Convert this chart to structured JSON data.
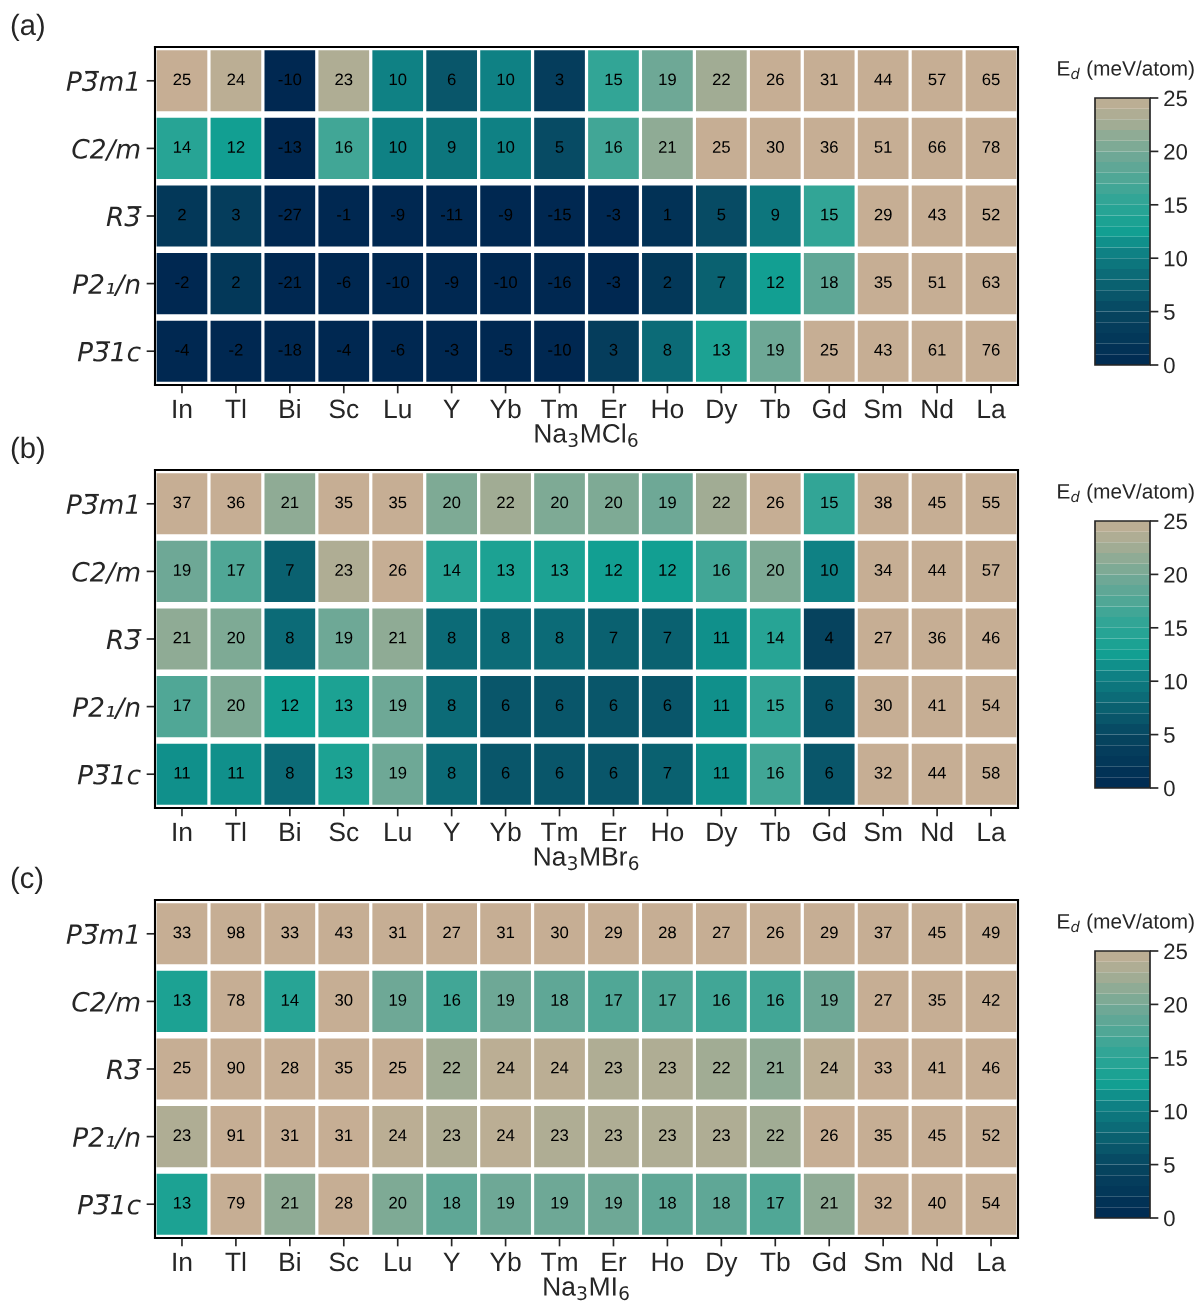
{
  "chart_data": [
    {
      "type": "heatmap",
      "title": "(a)",
      "xlabel": "Na$_{3}$MCl$_{6}$",
      "clabel": "E$_{d}$ (meV/atom)",
      "categories": [
        "In",
        "Tl",
        "Bi",
        "Sc",
        "Lu",
        "Y",
        "Yb",
        "Tm",
        "Er",
        "Ho",
        "Dy",
        "Tb",
        "Gd",
        "Sm",
        "Nd",
        "La"
      ],
      "y_categories": [
        "P3̅m1",
        "C2/m",
        "R3̅",
        "P2₁/n",
        "P3̅1c"
      ],
      "cells": [
        [
          25,
          24,
          -10,
          23,
          10,
          6,
          10,
          3,
          15,
          19,
          22,
          26,
          31,
          44,
          57,
          65
        ],
        [
          14,
          12,
          -13,
          16,
          10,
          9,
          10,
          5,
          16,
          21,
          25,
          30,
          36,
          51,
          66,
          78
        ],
        [
          2,
          3,
          -27,
          -1,
          -9,
          -11,
          -9,
          -15,
          -3,
          1,
          5,
          9,
          15,
          29,
          43,
          52
        ],
        [
          -2,
          2,
          -21,
          -6,
          -10,
          -9,
          -10,
          -16,
          -3,
          2,
          7,
          12,
          18,
          35,
          51,
          63
        ],
        [
          -4,
          -2,
          -18,
          -4,
          -6,
          -3,
          -5,
          -10,
          3,
          8,
          13,
          19,
          25,
          43,
          61,
          76
        ]
      ],
      "clim": [
        0,
        25
      ],
      "cticks": [
        0,
        5,
        10,
        15,
        20,
        25
      ],
      "data_labels": true
    },
    {
      "type": "heatmap",
      "title": "(b)",
      "xlabel": "Na$_{3}$MBr$_{6}$",
      "clabel": "E$_{d}$ (meV/atom)",
      "categories": [
        "In",
        "Tl",
        "Bi",
        "Sc",
        "Lu",
        "Y",
        "Yb",
        "Tm",
        "Er",
        "Ho",
        "Dy",
        "Tb",
        "Gd",
        "Sm",
        "Nd",
        "La"
      ],
      "y_categories": [
        "P3̅m1",
        "C2/m",
        "R3̅",
        "P2₁/n",
        "P3̅1c"
      ],
      "cells": [
        [
          37,
          36,
          21,
          35,
          35,
          20,
          22,
          20,
          20,
          19,
          22,
          26,
          15,
          38,
          45,
          55
        ],
        [
          19,
          17,
          7,
          23,
          26,
          14,
          13,
          13,
          12,
          12,
          16,
          20,
          10,
          34,
          44,
          57
        ],
        [
          21,
          20,
          8,
          19,
          21,
          8,
          8,
          8,
          7,
          7,
          11,
          14,
          4,
          27,
          36,
          46
        ],
        [
          17,
          20,
          12,
          13,
          19,
          8,
          6,
          6,
          6,
          6,
          11,
          15,
          6,
          30,
          41,
          54
        ],
        [
          11,
          11,
          8,
          13,
          19,
          8,
          6,
          6,
          6,
          7,
          11,
          16,
          6,
          32,
          44,
          58
        ]
      ],
      "clim": [
        0,
        25
      ],
      "cticks": [
        0,
        5,
        10,
        15,
        20,
        25
      ],
      "data_labels": true
    },
    {
      "type": "heatmap",
      "title": "(c)",
      "xlabel": "Na$_{3}$MI$_{6}$",
      "clabel": "E$_{d}$ (meV/atom)",
      "categories": [
        "In",
        "Tl",
        "Bi",
        "Sc",
        "Lu",
        "Y",
        "Yb",
        "Tm",
        "Er",
        "Ho",
        "Dy",
        "Tb",
        "Gd",
        "Sm",
        "Nd",
        "La"
      ],
      "y_categories": [
        "P3̅m1",
        "C2/m",
        "R3̅",
        "P2₁/n",
        "P3̅1c"
      ],
      "cells": [
        [
          33,
          98,
          33,
          43,
          31,
          27,
          31,
          30,
          29,
          28,
          27,
          26,
          29,
          37,
          45,
          49
        ],
        [
          13,
          78,
          14,
          30,
          19,
          16,
          19,
          18,
          17,
          17,
          16,
          16,
          19,
          27,
          35,
          42
        ],
        [
          25,
          90,
          28,
          35,
          25,
          22,
          24,
          24,
          23,
          23,
          22,
          21,
          24,
          33,
          41,
          46
        ],
        [
          23,
          91,
          31,
          31,
          24,
          23,
          24,
          23,
          23,
          23,
          23,
          22,
          26,
          35,
          45,
          52
        ],
        [
          13,
          79,
          21,
          28,
          20,
          18,
          19,
          19,
          19,
          18,
          18,
          17,
          21,
          32,
          40,
          54
        ]
      ],
      "clim": [
        0,
        25
      ],
      "cticks": [
        0,
        5,
        10,
        15,
        20,
        25
      ],
      "data_labels": true
    }
  ]
}
